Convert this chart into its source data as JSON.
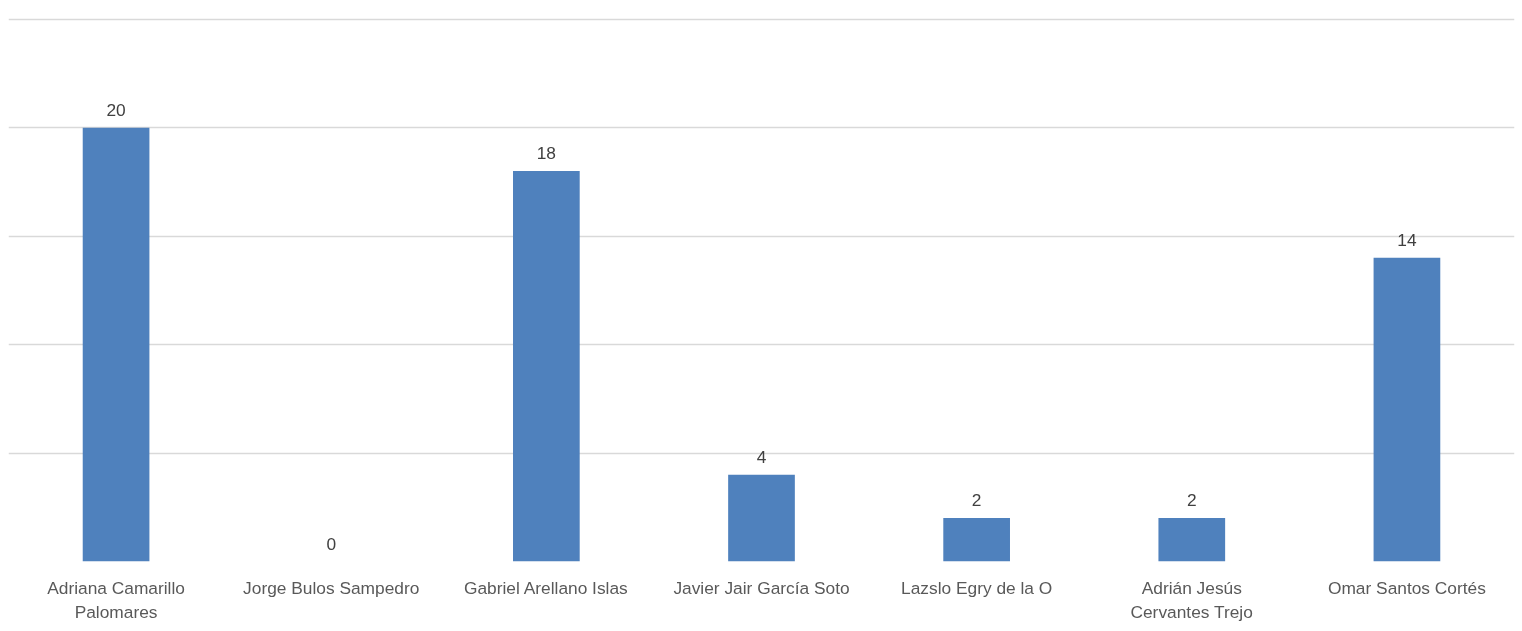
{
  "chart_data": {
    "type": "bar",
    "categories": [
      "Adriana Camarillo\nPalomares",
      "Jorge Bulos Sampedro",
      "Gabriel Arellano Islas",
      "Javier Jair García Soto",
      "Lazslo Egry de la O",
      "Adrián Jesús\nCervantes Trejo",
      "Omar Santos Cortés"
    ],
    "values": [
      20,
      0,
      18,
      4,
      2,
      2,
      14
    ],
    "color": "#4f81bd",
    "tick_labels": "x",
    "grid": "y",
    "data_labels": true
  }
}
